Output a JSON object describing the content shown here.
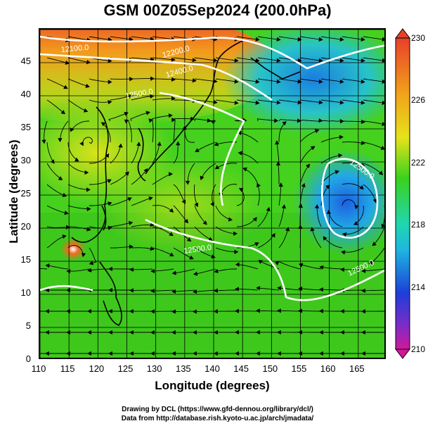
{
  "title": "GSM 00Z05Sep2024 (200.0hPa)",
  "xlabel": "Longitude (degrees)",
  "ylabel": "Latitude (degrees)",
  "credit_line1": "Drawing by DCL (https://www.gfd-dennou.org/library/dcl/)",
  "credit_line2": "Data from http://database.rish.kyoto-u.ac.jp/arch/jmadata/",
  "x_ticks": [
    "110",
    "115",
    "120",
    "125",
    "130",
    "135",
    "140",
    "145",
    "150",
    "155",
    "160",
    "165"
  ],
  "y_ticks": [
    "0",
    "5",
    "10",
    "15",
    "20",
    "25",
    "30",
    "35",
    "40",
    "45"
  ],
  "colorbar_ticks": [
    "230",
    "226",
    "222",
    "218",
    "214",
    "210"
  ],
  "contour_labels": [
    "12100.0",
    "12200.0",
    "12400.0",
    "12500.0",
    "12500.0",
    "12500.0",
    "12500.0"
  ],
  "colors": {
    "high": "#e8402a",
    "warm": "#f2c21a",
    "mid": "#3ad21c",
    "cool": "#1fb6e0",
    "low": "#1d3fd8",
    "min": "#d0189a"
  },
  "chart_data": {
    "type": "heatmap",
    "title": "GSM 00Z05Sep2024 (200.0hPa)",
    "xlabel": "Longitude (degrees)",
    "ylabel": "Latitude (degrees)",
    "xlim": [
      110,
      170
    ],
    "ylim": [
      0,
      50
    ],
    "colorbar_range": [
      210,
      230
    ],
    "contour_values": [
      12100.0,
      12200.0,
      12400.0,
      12500.0
    ],
    "grid": true
  }
}
